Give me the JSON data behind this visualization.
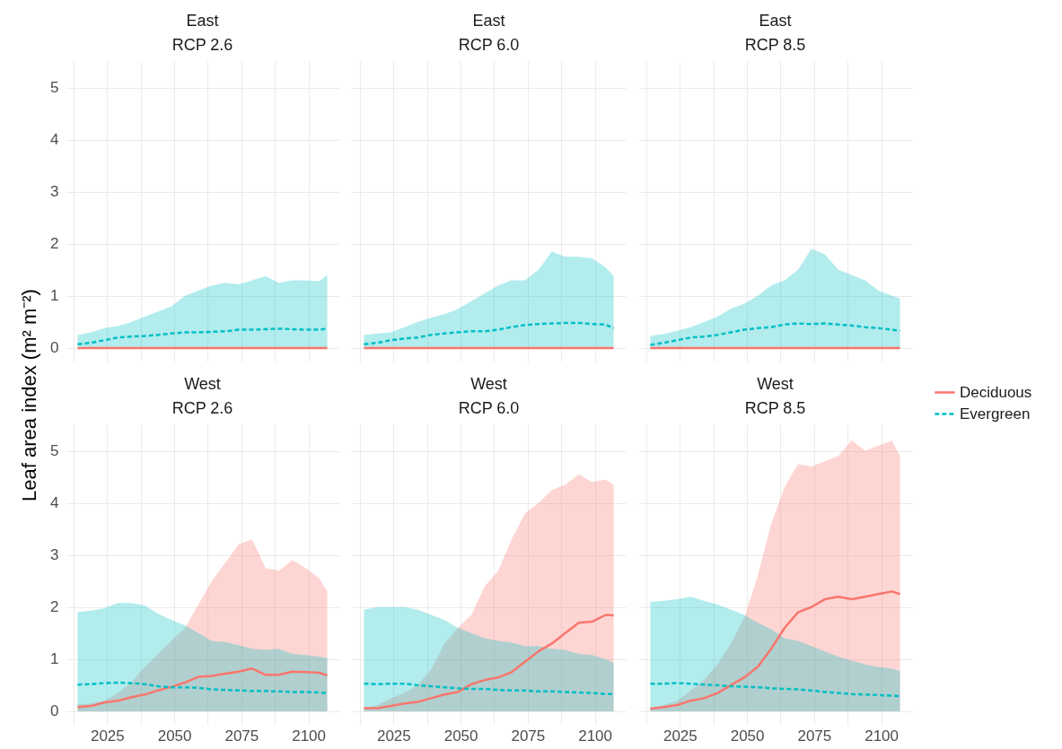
{
  "chart_data": [
    {
      "type": "line",
      "title": "East",
      "subtitle": "RCP 2.6",
      "ylabel": "Leaf area index (m² m⁻²)",
      "grid": true,
      "tick_labels": "y",
      "xlim": [
        2009.5,
        2111.5
      ],
      "xticks": [
        {
          "value": 2012.5,
          "label": null
        },
        2025,
        {
          "value": 2037.5,
          "label": null
        },
        2050,
        {
          "value": 2062.5,
          "label": null
        },
        2075,
        {
          "value": 2087.5,
          "label": null
        },
        2100
      ],
      "ylim": [
        -0.26,
        5.51
      ],
      "yticks": [
        0,
        1,
        2,
        3,
        4,
        5
      ],
      "x": [
        2014,
        2019,
        2024,
        2029,
        2034,
        2039,
        2044,
        2049,
        2054,
        2059,
        2064,
        2069,
        2074,
        2079,
        2084,
        2089,
        2094,
        2099,
        2104,
        2107
      ],
      "series": [
        {
          "color": "#f8766d",
          "line_style": "solid",
          "values": [
            0,
            0,
            0,
            0,
            0,
            0,
            0,
            0,
            0,
            0,
            0,
            0,
            0,
            0,
            0,
            0,
            0,
            0,
            0,
            0
          ]
        },
        {
          "color": "#00bfc4",
          "line_style": "dashed",
          "values": [
            0.07,
            0.1,
            0.15,
            0.2,
            0.22,
            0.23,
            0.25,
            0.28,
            0.3,
            0.3,
            0.31,
            0.32,
            0.35,
            0.35,
            0.36,
            0.37,
            0.36,
            0.35,
            0.35,
            0.37
          ],
          "lower": [
            0,
            0,
            0,
            0,
            0,
            0,
            0,
            0,
            0,
            0,
            0,
            0,
            0,
            0,
            0,
            0,
            0,
            0,
            0,
            0
          ],
          "upper": [
            0.25,
            0.3,
            0.38,
            0.42,
            0.5,
            0.6,
            0.7,
            0.8,
            1.0,
            1.1,
            1.2,
            1.25,
            1.22,
            1.3,
            1.38,
            1.25,
            1.3,
            1.3,
            1.28,
            1.4
          ]
        }
      ]
    },
    {
      "type": "line",
      "title": "East",
      "subtitle": "RCP 6.0",
      "grid": true,
      "tick_labels": false,
      "xlim": [
        2009.5,
        2111.5
      ],
      "xticks": [
        {
          "value": 2012.5,
          "label": null
        },
        2025,
        {
          "value": 2037.5,
          "label": null
        },
        2050,
        {
          "value": 2062.5,
          "label": null
        },
        2075,
        {
          "value": 2087.5,
          "label": null
        },
        2100
      ],
      "ylim": [
        -0.26,
        5.51
      ],
      "yticks": [
        0,
        1,
        2,
        3,
        4,
        5
      ],
      "x": [
        2014,
        2019,
        2024,
        2029,
        2034,
        2039,
        2044,
        2049,
        2054,
        2059,
        2064,
        2069,
        2074,
        2079,
        2084,
        2089,
        2094,
        2099,
        2104,
        2107
      ],
      "series": [
        {
          "color": "#f8766d",
          "line_style": "solid",
          "values": [
            0,
            0,
            0,
            0,
            0,
            0,
            0,
            0,
            0,
            0,
            0,
            0,
            0,
            0,
            0,
            0,
            0,
            0,
            0,
            0
          ]
        },
        {
          "color": "#00bfc4",
          "line_style": "dashed",
          "values": [
            0.07,
            0.1,
            0.15,
            0.18,
            0.2,
            0.25,
            0.28,
            0.3,
            0.32,
            0.32,
            0.35,
            0.4,
            0.44,
            0.46,
            0.47,
            0.48,
            0.48,
            0.46,
            0.45,
            0.38
          ],
          "lower": [
            0,
            0,
            0,
            0,
            0,
            0,
            0,
            0,
            0,
            0,
            0,
            0,
            0,
            0,
            0,
            0,
            0,
            0,
            0,
            0
          ],
          "upper": [
            0.25,
            0.28,
            0.3,
            0.4,
            0.5,
            0.58,
            0.65,
            0.75,
            0.9,
            1.05,
            1.2,
            1.3,
            1.3,
            1.5,
            1.85,
            1.75,
            1.75,
            1.72,
            1.55,
            1.38
          ]
        }
      ]
    },
    {
      "type": "line",
      "title": "East",
      "subtitle": "RCP 8.5",
      "grid": true,
      "tick_labels": false,
      "legend": "right",
      "xlim": [
        2009.5,
        2111.5
      ],
      "xticks": [
        {
          "value": 2012.5,
          "label": null
        },
        2025,
        {
          "value": 2037.5,
          "label": null
        },
        2050,
        {
          "value": 2062.5,
          "label": null
        },
        2075,
        {
          "value": 2087.5,
          "label": null
        },
        2100
      ],
      "ylim": [
        -0.26,
        5.51
      ],
      "yticks": [
        0,
        1,
        2,
        3,
        4,
        5
      ],
      "x": [
        2014,
        2019,
        2024,
        2029,
        2034,
        2039,
        2044,
        2049,
        2054,
        2059,
        2064,
        2069,
        2074,
        2079,
        2084,
        2089,
        2094,
        2099,
        2104,
        2107
      ],
      "series": [
        {
          "name": "Deciduous",
          "color": "#f8766d",
          "line_style": "solid",
          "values": [
            0,
            0,
            0,
            0,
            0,
            0,
            0,
            0,
            0,
            0,
            0,
            0,
            0,
            0,
            0,
            0,
            0,
            0,
            0,
            0
          ]
        },
        {
          "name": "Evergreen",
          "color": "#00bfc4",
          "line_style": "dashed",
          "values": [
            0.06,
            0.1,
            0.15,
            0.2,
            0.22,
            0.25,
            0.3,
            0.35,
            0.38,
            0.4,
            0.45,
            0.47,
            0.46,
            0.47,
            0.45,
            0.43,
            0.4,
            0.38,
            0.35,
            0.33
          ],
          "lower": [
            0,
            0,
            0,
            0,
            0,
            0,
            0,
            0,
            0,
            0,
            0,
            0,
            0,
            0,
            0,
            0,
            0,
            0,
            0,
            0
          ],
          "upper": [
            0.23,
            0.27,
            0.33,
            0.4,
            0.5,
            0.6,
            0.75,
            0.85,
            1.0,
            1.2,
            1.3,
            1.5,
            1.9,
            1.8,
            1.5,
            1.4,
            1.3,
            1.1,
            1.0,
            0.95
          ]
        }
      ]
    },
    {
      "type": "line",
      "title": "West",
      "subtitle": "RCP 2.6",
      "grid": true,
      "xlim": [
        2009.5,
        2111.5
      ],
      "xticks": [
        {
          "value": 2012.5,
          "label": null
        },
        2025,
        {
          "value": 2037.5,
          "label": null
        },
        2050,
        {
          "value": 2062.5,
          "label": null
        },
        2075,
        {
          "value": 2087.5,
          "label": null
        },
        2100
      ],
      "ylim": [
        -0.26,
        5.51
      ],
      "yticks": [
        0,
        1,
        2,
        3,
        4,
        5
      ],
      "x": [
        2014,
        2019,
        2024,
        2029,
        2034,
        2039,
        2044,
        2049,
        2054,
        2059,
        2064,
        2069,
        2074,
        2079,
        2084,
        2089,
        2094,
        2099,
        2104,
        2107
      ],
      "series": [
        {
          "color": "#f8766d",
          "line_style": "solid",
          "values": [
            0.08,
            0.1,
            0.17,
            0.2,
            0.27,
            0.32,
            0.4,
            0.47,
            0.55,
            0.66,
            0.68,
            0.72,
            0.76,
            0.82,
            0.7,
            0.7,
            0.76,
            0.75,
            0.74,
            0.69
          ],
          "lower": [
            0,
            0,
            0,
            0,
            0,
            0,
            0,
            0,
            0,
            0,
            0,
            0,
            0,
            0,
            0,
            0,
            0,
            0,
            0,
            0
          ],
          "upper": [
            0.13,
            0.15,
            0.2,
            0.35,
            0.55,
            0.85,
            1.1,
            1.35,
            1.6,
            2.05,
            2.5,
            2.85,
            3.2,
            3.3,
            2.75,
            2.7,
            2.9,
            2.75,
            2.55,
            2.3
          ]
        },
        {
          "color": "#00bfc4",
          "line_style": "dashed",
          "values": [
            0.51,
            0.52,
            0.54,
            0.55,
            0.54,
            0.52,
            0.48,
            0.46,
            0.46,
            0.45,
            0.42,
            0.41,
            0.4,
            0.39,
            0.39,
            0.38,
            0.37,
            0.37,
            0.36,
            0.35
          ],
          "lower": [
            0,
            0,
            0,
            0,
            0,
            0,
            0,
            0,
            0,
            0,
            0,
            0,
            0,
            0,
            0,
            0,
            0,
            0,
            0,
            0
          ],
          "upper": [
            1.9,
            1.93,
            1.98,
            2.08,
            2.08,
            2.03,
            1.87,
            1.75,
            1.65,
            1.5,
            1.35,
            1.33,
            1.27,
            1.2,
            1.18,
            1.2,
            1.1,
            1.08,
            1.05,
            1.02
          ]
        }
      ]
    },
    {
      "type": "line",
      "title": "West",
      "subtitle": "RCP 6.0",
      "grid": true,
      "tick_labels": "x",
      "xlim": [
        2009.5,
        2111.5
      ],
      "xticks": [
        {
          "value": 2012.5,
          "label": null
        },
        2025,
        {
          "value": 2037.5,
          "label": null
        },
        2050,
        {
          "value": 2062.5,
          "label": null
        },
        2075,
        {
          "value": 2087.5,
          "label": null
        },
        2100
      ],
      "ylim": [
        -0.26,
        5.51
      ],
      "yticks": [
        0,
        1,
        2,
        3,
        4,
        5
      ],
      "x": [
        2014,
        2019,
        2024,
        2029,
        2034,
        2039,
        2044,
        2049,
        2054,
        2059,
        2064,
        2069,
        2074,
        2079,
        2084,
        2089,
        2094,
        2099,
        2104,
        2107
      ],
      "series": [
        {
          "color": "#f8766d",
          "line_style": "solid",
          "values": [
            0.06,
            0.06,
            0.1,
            0.15,
            0.18,
            0.25,
            0.32,
            0.37,
            0.52,
            0.6,
            0.65,
            0.75,
            0.95,
            1.15,
            1.3,
            1.5,
            1.7,
            1.72,
            1.85,
            1.84
          ],
          "lower": [
            0,
            0,
            0,
            0,
            0,
            0,
            0,
            0,
            0,
            0,
            0,
            0,
            0,
            0,
            0,
            0,
            0,
            0,
            0,
            0
          ],
          "upper": [
            0.05,
            0.12,
            0.25,
            0.35,
            0.5,
            0.8,
            1.3,
            1.6,
            1.85,
            2.4,
            2.7,
            3.3,
            3.8,
            4.0,
            4.25,
            4.35,
            4.55,
            4.4,
            4.45,
            4.35
          ]
        },
        {
          "color": "#00bfc4",
          "line_style": "dashed",
          "values": [
            0.53,
            0.52,
            0.53,
            0.53,
            0.5,
            0.48,
            0.46,
            0.44,
            0.43,
            0.43,
            0.41,
            0.4,
            0.4,
            0.38,
            0.38,
            0.37,
            0.36,
            0.35,
            0.33,
            0.33
          ],
          "lower": [
            0,
            0,
            0,
            0,
            0,
            0,
            0,
            0,
            0,
            0,
            0,
            0,
            0,
            0,
            0,
            0,
            0,
            0,
            0,
            0
          ],
          "upper": [
            1.95,
            2.0,
            2.0,
            2.0,
            1.95,
            1.85,
            1.75,
            1.6,
            1.5,
            1.4,
            1.35,
            1.32,
            1.25,
            1.25,
            1.2,
            1.18,
            1.1,
            1.08,
            1.0,
            0.93
          ]
        }
      ]
    },
    {
      "type": "line",
      "title": "West",
      "subtitle": "RCP 8.5",
      "grid": true,
      "tick_labels": "x",
      "xlim": [
        2009.5,
        2111.5
      ],
      "xticks": [
        {
          "value": 2012.5,
          "label": null
        },
        2025,
        {
          "value": 2037.5,
          "label": null
        },
        2050,
        {
          "value": 2062.5,
          "label": null
        },
        2075,
        {
          "value": 2087.5,
          "label": null
        },
        2100
      ],
      "ylim": [
        -0.26,
        5.51
      ],
      "yticks": [
        0,
        1,
        2,
        3,
        4,
        5
      ],
      "x": [
        2014,
        2019,
        2024,
        2029,
        2034,
        2039,
        2044,
        2049,
        2054,
        2059,
        2064,
        2069,
        2074,
        2079,
        2084,
        2089,
        2094,
        2099,
        2104,
        2107
      ],
      "series": [
        {
          "color": "#f8766d",
          "line_style": "solid",
          "values": [
            0.05,
            0.08,
            0.12,
            0.2,
            0.25,
            0.35,
            0.5,
            0.65,
            0.85,
            1.2,
            1.6,
            1.9,
            2.0,
            2.15,
            2.2,
            2.15,
            2.2,
            2.25,
            2.3,
            2.25
          ],
          "lower": [
            0,
            0,
            0,
            0,
            0,
            0,
            0,
            0,
            0,
            0,
            0,
            0,
            0,
            0,
            0,
            0,
            0,
            0,
            0,
            0
          ],
          "upper": [
            0.05,
            0.12,
            0.2,
            0.4,
            0.6,
            0.9,
            1.3,
            1.8,
            2.6,
            3.6,
            4.3,
            4.75,
            4.7,
            4.8,
            4.9,
            5.2,
            5.0,
            5.1,
            5.2,
            4.9
          ]
        },
        {
          "color": "#00bfc4",
          "line_style": "dashed",
          "values": [
            0.53,
            0.53,
            0.54,
            0.53,
            0.51,
            0.5,
            0.48,
            0.47,
            0.46,
            0.44,
            0.43,
            0.42,
            0.4,
            0.37,
            0.35,
            0.33,
            0.32,
            0.31,
            0.3,
            0.29
          ],
          "lower": [
            0,
            0,
            0,
            0,
            0,
            0,
            0,
            0,
            0,
            0,
            0,
            0,
            0,
            0,
            0,
            0,
            0,
            0,
            0,
            0
          ],
          "upper": [
            2.1,
            2.12,
            2.15,
            2.2,
            2.12,
            2.05,
            1.95,
            1.85,
            1.7,
            1.58,
            1.4,
            1.35,
            1.25,
            1.15,
            1.05,
            0.97,
            0.9,
            0.85,
            0.82,
            0.77
          ]
        }
      ]
    }
  ]
}
